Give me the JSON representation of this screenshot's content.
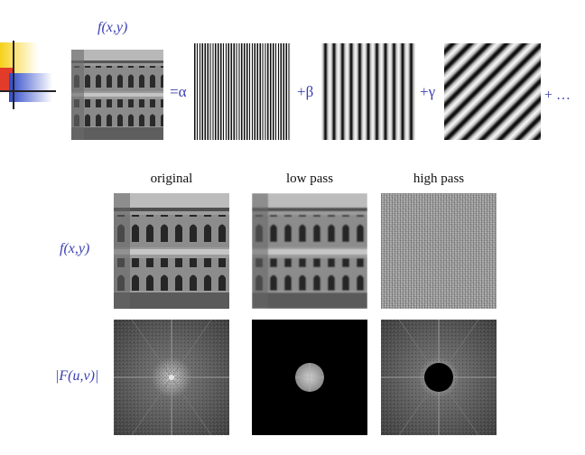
{
  "top": {
    "fxy_label": "f(x,y)",
    "equals_alpha": "=α",
    "plus_beta": "+β",
    "plus_gamma": "+γ",
    "plus_ellipsis": "+ …"
  },
  "grid": {
    "col_labels": [
      "original",
      "low pass",
      "high pass"
    ],
    "row_labels": [
      "f(x,y)",
      "|F(u,v)|"
    ]
  },
  "colors": {
    "label_blue": "#3a3fb0",
    "logo_yellow": "#f6d11a",
    "logo_red": "#e23b2a",
    "logo_blue": "#2e49c8"
  }
}
